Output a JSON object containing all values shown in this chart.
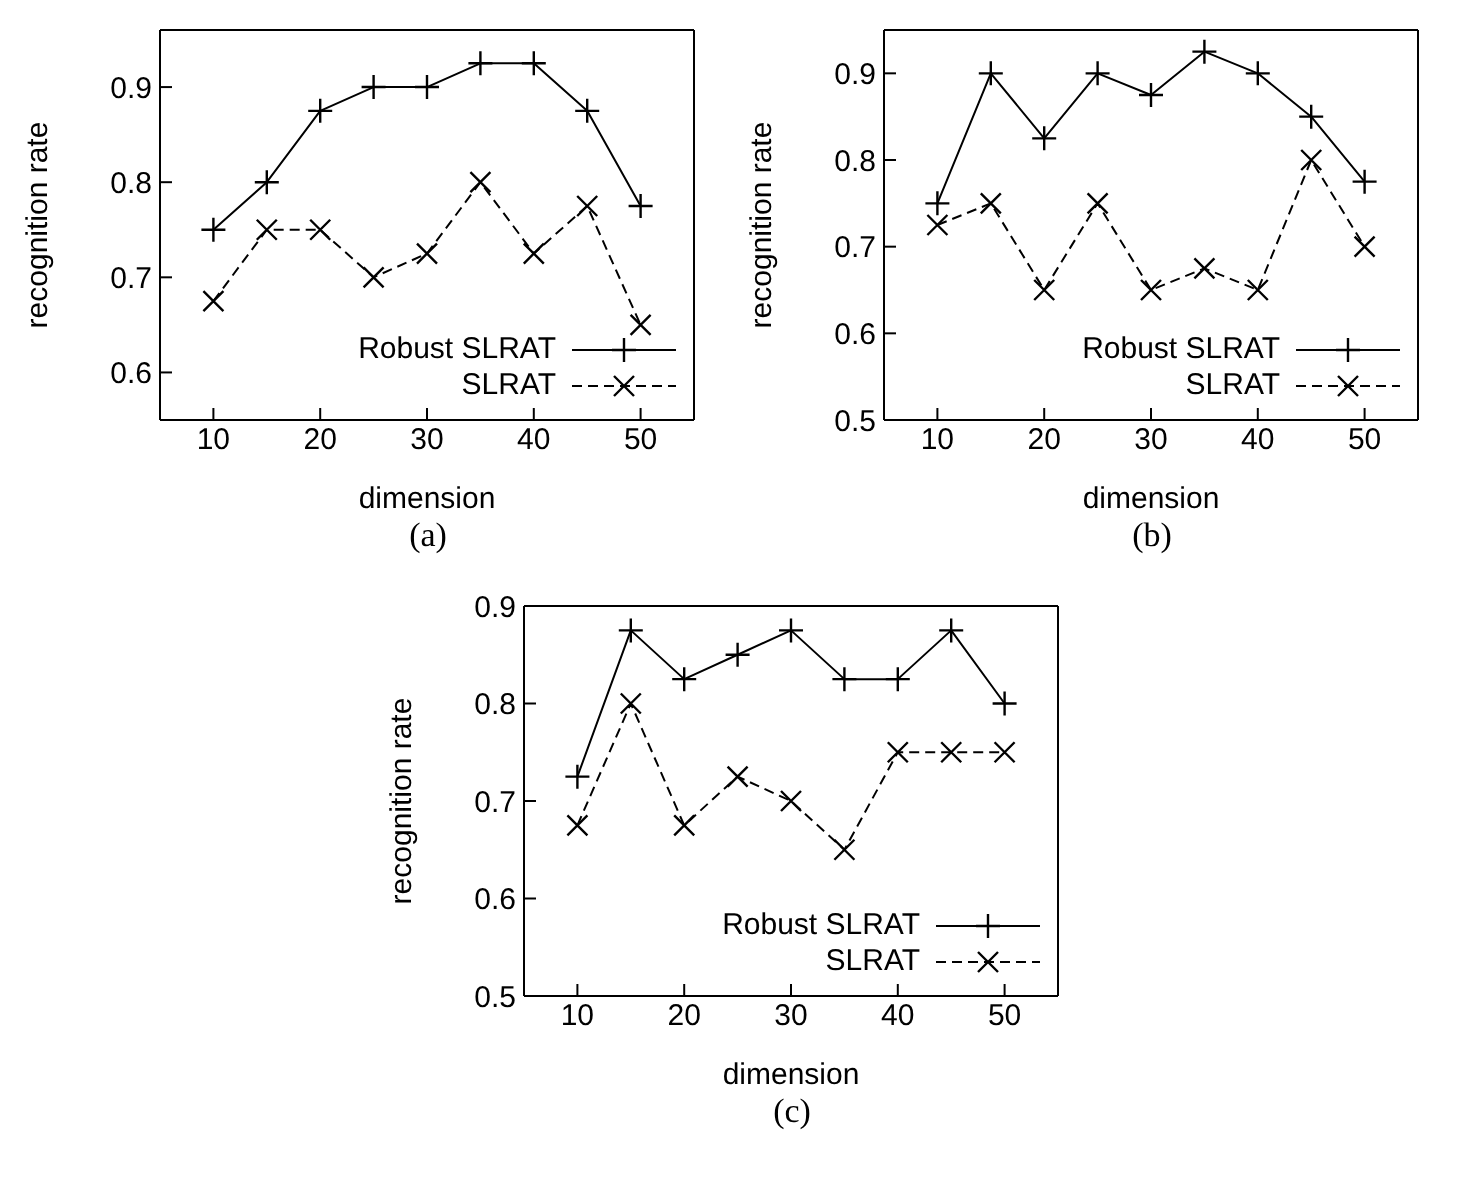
{
  "chart_data": [
    {
      "type": "line",
      "x": [
        10,
        15,
        20,
        25,
        30,
        35,
        40,
        45,
        50
      ],
      "xlabel": "dimension",
      "ylabel": "recognition rate",
      "xlim": [
        5,
        55
      ],
      "xticks": [
        10,
        20,
        30,
        40,
        50
      ],
      "ylim": [
        0.55,
        0.96
      ],
      "yticks": [
        0.6,
        0.7,
        0.8,
        0.9
      ],
      "legend": "bottom right",
      "annotations": [
        "(a)"
      ],
      "series": [
        {
          "name": "Robust SLRAT",
          "color": "#000000",
          "line_style": "solid",
          "marker": "plus",
          "values": [
            0.75,
            0.8,
            0.875,
            0.9,
            0.9,
            0.925,
            0.925,
            0.875,
            0.775
          ]
        },
        {
          "name": "SLRAT",
          "color": "#000000",
          "line_style": "dashed",
          "marker": "cross",
          "values": [
            0.675,
            0.75,
            0.75,
            0.7,
            0.725,
            0.8,
            0.725,
            0.775,
            0.65
          ]
        }
      ]
    },
    {
      "type": "line",
      "x": [
        10,
        15,
        20,
        25,
        30,
        35,
        40,
        45,
        50
      ],
      "xlabel": "dimension",
      "ylabel": "recognition rate",
      "xlim": [
        5,
        55
      ],
      "xticks": [
        10,
        20,
        30,
        40,
        50
      ],
      "ylim": [
        0.5,
        0.95
      ],
      "yticks": [
        0.5,
        0.6,
        0.7,
        0.8,
        0.9
      ],
      "legend": "bottom right",
      "annotations": [
        "(b)"
      ],
      "series": [
        {
          "name": "Robust SLRAT",
          "color": "#000000",
          "line_style": "solid",
          "marker": "plus",
          "values": [
            0.75,
            0.9,
            0.825,
            0.9,
            0.875,
            0.925,
            0.9,
            0.85,
            0.775
          ]
        },
        {
          "name": "SLRAT",
          "color": "#000000",
          "line_style": "dashed",
          "marker": "cross",
          "values": [
            0.725,
            0.75,
            0.65,
            0.75,
            0.65,
            0.675,
            0.65,
            0.8,
            0.7
          ]
        }
      ]
    },
    {
      "type": "line",
      "x": [
        10,
        15,
        20,
        25,
        30,
        35,
        40,
        45,
        50
      ],
      "xlabel": "dimension",
      "ylabel": "recognition rate",
      "xlim": [
        5,
        55
      ],
      "xticks": [
        10,
        20,
        30,
        40,
        50
      ],
      "ylim": [
        0.5,
        0.9
      ],
      "yticks": [
        0.5,
        0.6,
        0.7,
        0.8,
        0.9
      ],
      "legend": "bottom right",
      "annotations": [
        "(c)"
      ],
      "series": [
        {
          "name": "Robust SLRAT",
          "color": "#000000",
          "line_style": "solid",
          "marker": "plus",
          "values": [
            0.725,
            0.875,
            0.825,
            0.85,
            0.875,
            0.825,
            0.825,
            0.875,
            0.8
          ]
        },
        {
          "name": "SLRAT",
          "color": "#000000",
          "line_style": "dashed",
          "marker": "cross",
          "values": [
            0.675,
            0.8,
            0.675,
            0.725,
            0.7,
            0.65,
            0.75,
            0.75,
            0.75
          ]
        }
      ]
    }
  ]
}
